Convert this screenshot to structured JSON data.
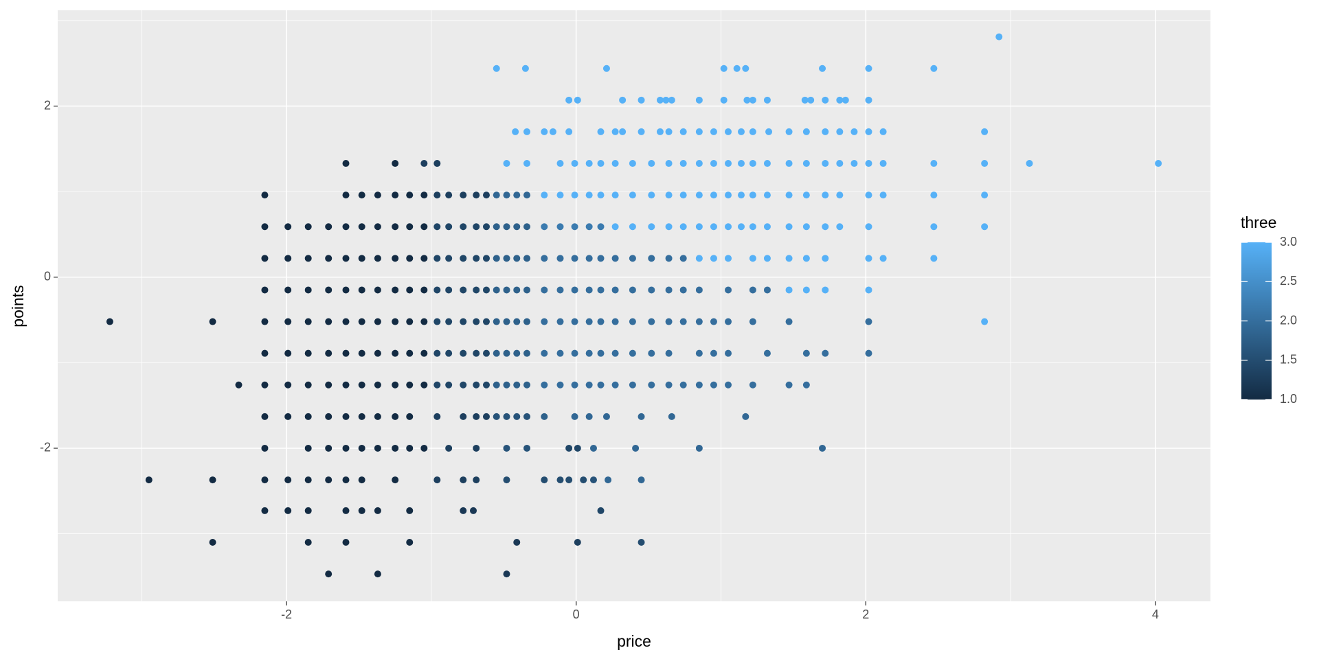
{
  "chart_data": {
    "type": "scatter",
    "x_label": "price",
    "y_label": "points",
    "color_label": "three",
    "xlim": [
      -3.58,
      4.38
    ],
    "ylim": [
      -3.79,
      3.12
    ],
    "xticks": [
      -2,
      0,
      2,
      4
    ],
    "yticks": [
      -2,
      0,
      2
    ],
    "minor_xticks": [
      -3,
      -1,
      1,
      3
    ],
    "minor_yticks": [
      -3,
      -1,
      1,
      3
    ],
    "grid": true,
    "color_low": "#132B43",
    "color_high": "#56B1F7",
    "color_lim": [
      1,
      3
    ],
    "color_ticks": [
      {
        "value": 1,
        "label": "1.0"
      },
      {
        "value": 1.5,
        "label": "1.5"
      },
      {
        "value": 2,
        "label": "2.0"
      },
      {
        "value": 2.5,
        "label": "2.5"
      },
      {
        "value": 3,
        "label": "3.0"
      }
    ],
    "x": [
      2.92,
      -0.55,
      -0.35,
      0.21,
      1.02,
      1.11,
      1.17,
      1.7,
      2.02,
      2.47,
      -0.05,
      0.01,
      0.32,
      0.45,
      0.58,
      0.62,
      0.66,
      0.85,
      1.02,
      1.18,
      1.22,
      1.32,
      1.58,
      1.62,
      1.72,
      1.82,
      1.86,
      2.02,
      -0.42,
      -0.34,
      -0.22,
      -0.16,
      -0.05,
      0.17,
      0.27,
      0.32,
      0.45,
      0.58,
      0.64,
      0.74,
      0.85,
      0.95,
      1.05,
      1.14,
      1.22,
      1.33,
      1.47,
      1.59,
      1.72,
      1.82,
      1.92,
      2.02,
      2.12,
      2.82,
      -1.59,
      -1.25,
      -1.05,
      -0.96,
      -0.48,
      -0.34,
      -0.11,
      -0.01,
      0.09,
      0.17,
      0.27,
      0.39,
      0.52,
      0.64,
      0.74,
      0.85,
      0.95,
      1.05,
      1.14,
      1.22,
      1.32,
      1.47,
      1.59,
      1.72,
      1.82,
      1.92,
      2.02,
      2.12,
      2.47,
      2.82,
      3.13,
      4.02,
      -2.15,
      -1.59,
      -1.48,
      -1.37,
      -1.25,
      -1.15,
      -1.05,
      -0.96,
      -0.88,
      -0.78,
      -0.69,
      -0.62,
      -0.55,
      -0.48,
      -0.41,
      -0.34,
      -0.22,
      -0.11,
      -0.01,
      0.09,
      0.17,
      0.27,
      0.39,
      0.52,
      0.64,
      0.74,
      0.85,
      0.95,
      1.05,
      1.14,
      1.22,
      1.32,
      1.47,
      1.59,
      1.72,
      1.82,
      2.02,
      2.12,
      2.47,
      2.82,
      -2.15,
      -1.99,
      -1.85,
      -1.71,
      -1.59,
      -1.48,
      -1.37,
      -1.25,
      -1.15,
      -1.05,
      -0.96,
      -0.88,
      -0.78,
      -0.69,
      -0.62,
      -0.55,
      -0.48,
      -0.41,
      -0.34,
      -0.22,
      -0.11,
      -0.01,
      0.09,
      0.17,
      0.27,
      0.39,
      0.52,
      0.64,
      0.74,
      0.85,
      0.95,
      1.05,
      1.14,
      1.22,
      1.32,
      1.47,
      1.59,
      1.72,
      1.82,
      2.02,
      2.47,
      2.82,
      -2.15,
      -1.99,
      -1.85,
      -1.71,
      -1.59,
      -1.48,
      -1.37,
      -1.25,
      -1.15,
      -1.05,
      -0.96,
      -0.88,
      -0.78,
      -0.69,
      -0.62,
      -0.55,
      -0.48,
      -0.41,
      -0.34,
      -0.22,
      -0.11,
      -0.01,
      0.09,
      0.17,
      0.27,
      0.39,
      0.52,
      0.64,
      0.74,
      0.85,
      0.95,
      1.05,
      1.22,
      1.32,
      1.47,
      1.59,
      1.72,
      2.02,
      2.12,
      2.47,
      -2.15,
      -1.99,
      -1.85,
      -1.71,
      -1.59,
      -1.48,
      -1.37,
      -1.25,
      -1.15,
      -1.05,
      -0.96,
      -0.88,
      -0.78,
      -0.69,
      -0.62,
      -0.55,
      -0.48,
      -0.41,
      -0.34,
      -0.22,
      -0.11,
      -0.01,
      0.09,
      0.17,
      0.27,
      0.39,
      0.52,
      0.64,
      0.74,
      0.85,
      1.05,
      1.22,
      1.32,
      1.47,
      1.59,
      1.72,
      2.02,
      -3.22,
      -2.51,
      -2.15,
      -1.99,
      -1.85,
      -1.71,
      -1.59,
      -1.48,
      -1.37,
      -1.25,
      -1.15,
      -1.05,
      -0.96,
      -0.88,
      -0.78,
      -0.69,
      -0.62,
      -0.55,
      -0.48,
      -0.41,
      -0.34,
      -0.22,
      -0.11,
      -0.01,
      0.09,
      0.17,
      0.27,
      0.39,
      0.52,
      0.64,
      0.74,
      0.85,
      0.95,
      1.05,
      1.22,
      1.47,
      2.02,
      2.82,
      -2.15,
      -1.99,
      -1.85,
      -1.71,
      -1.59,
      -1.48,
      -1.37,
      -1.25,
      -1.15,
      -1.05,
      -0.96,
      -0.88,
      -0.78,
      -0.69,
      -0.62,
      -0.55,
      -0.48,
      -0.41,
      -0.34,
      -0.22,
      -0.11,
      -0.01,
      0.09,
      0.17,
      0.27,
      0.39,
      0.52,
      0.64,
      0.85,
      0.95,
      1.05,
      1.32,
      1.59,
      1.72,
      2.02,
      -2.33,
      -2.15,
      -1.99,
      -1.85,
      -1.71,
      -1.59,
      -1.48,
      -1.37,
      -1.25,
      -1.15,
      -1.05,
      -0.96,
      -0.88,
      -0.78,
      -0.69,
      -0.62,
      -0.55,
      -0.48,
      -0.41,
      -0.34,
      -0.22,
      -0.11,
      -0.01,
      0.09,
      0.17,
      0.27,
      0.39,
      0.52,
      0.64,
      0.74,
      0.85,
      0.95,
      1.05,
      1.22,
      1.47,
      1.59,
      -2.15,
      -1.99,
      -1.85,
      -1.71,
      -1.59,
      -1.48,
      -1.37,
      -1.25,
      -1.15,
      -0.96,
      -0.78,
      -0.69,
      -0.62,
      -0.55,
      -0.48,
      -0.41,
      -0.34,
      -0.22,
      -0.01,
      0.09,
      0.21,
      0.45,
      0.66,
      1.17,
      -2.15,
      -1.85,
      -1.71,
      -1.59,
      -1.48,
      -1.37,
      -1.25,
      -1.15,
      -1.05,
      -0.88,
      -0.69,
      -0.48,
      -0.34,
      -0.05,
      0.01,
      0.12,
      0.41,
      0.85,
      1.7,
      -2.95,
      -2.51,
      -2.15,
      -1.99,
      -1.85,
      -1.71,
      -1.59,
      -1.48,
      -1.25,
      -0.96,
      -0.78,
      -0.69,
      -0.48,
      -0.22,
      -0.11,
      -0.05,
      0.05,
      0.12,
      0.22,
      0.45,
      -2.15,
      -1.99,
      -1.85,
      -1.59,
      -1.48,
      -1.37,
      -1.15,
      -0.78,
      -0.71,
      0.17,
      -2.51,
      -1.85,
      -1.59,
      -1.15,
      -0.41,
      0.01,
      0.45,
      -1.71,
      -1.37,
      -0.48
    ],
    "y": [
      2.81,
      2.44,
      2.44,
      2.44,
      2.44,
      2.44,
      2.44,
      2.44,
      2.44,
      2.44,
      2.07,
      2.07,
      2.07,
      2.07,
      2.07,
      2.07,
      2.07,
      2.07,
      2.07,
      2.07,
      2.07,
      2.07,
      2.07,
      2.07,
      2.07,
      2.07,
      2.07,
      2.07,
      1.7,
      1.7,
      1.7,
      1.7,
      1.7,
      1.7,
      1.7,
      1.7,
      1.7,
      1.7,
      1.7,
      1.7,
      1.7,
      1.7,
      1.7,
      1.7,
      1.7,
      1.7,
      1.7,
      1.7,
      1.7,
      1.7,
      1.7,
      1.7,
      1.7,
      1.7,
      1.33,
      1.33,
      1.33,
      1.33,
      1.33,
      1.33,
      1.33,
      1.33,
      1.33,
      1.33,
      1.33,
      1.33,
      1.33,
      1.33,
      1.33,
      1.33,
      1.33,
      1.33,
      1.33,
      1.33,
      1.33,
      1.33,
      1.33,
      1.33,
      1.33,
      1.33,
      1.33,
      1.33,
      1.33,
      1.33,
      1.33,
      1.33,
      0.96,
      0.96,
      0.96,
      0.96,
      0.96,
      0.96,
      0.96,
      0.96,
      0.96,
      0.96,
      0.96,
      0.96,
      0.96,
      0.96,
      0.96,
      0.96,
      0.96,
      0.96,
      0.96,
      0.96,
      0.96,
      0.96,
      0.96,
      0.96,
      0.96,
      0.96,
      0.96,
      0.96,
      0.96,
      0.96,
      0.96,
      0.96,
      0.96,
      0.96,
      0.96,
      0.96,
      0.96,
      0.96,
      0.96,
      0.96,
      0.59,
      0.59,
      0.59,
      0.59,
      0.59,
      0.59,
      0.59,
      0.59,
      0.59,
      0.59,
      0.59,
      0.59,
      0.59,
      0.59,
      0.59,
      0.59,
      0.59,
      0.59,
      0.59,
      0.59,
      0.59,
      0.59,
      0.59,
      0.59,
      0.59,
      0.59,
      0.59,
      0.59,
      0.59,
      0.59,
      0.59,
      0.59,
      0.59,
      0.59,
      0.59,
      0.59,
      0.59,
      0.59,
      0.59,
      0.59,
      0.59,
      0.59,
      0.22,
      0.22,
      0.22,
      0.22,
      0.22,
      0.22,
      0.22,
      0.22,
      0.22,
      0.22,
      0.22,
      0.22,
      0.22,
      0.22,
      0.22,
      0.22,
      0.22,
      0.22,
      0.22,
      0.22,
      0.22,
      0.22,
      0.22,
      0.22,
      0.22,
      0.22,
      0.22,
      0.22,
      0.22,
      0.22,
      0.22,
      0.22,
      0.22,
      0.22,
      0.22,
      0.22,
      0.22,
      0.22,
      0.22,
      0.22,
      -0.15,
      -0.15,
      -0.15,
      -0.15,
      -0.15,
      -0.15,
      -0.15,
      -0.15,
      -0.15,
      -0.15,
      -0.15,
      -0.15,
      -0.15,
      -0.15,
      -0.15,
      -0.15,
      -0.15,
      -0.15,
      -0.15,
      -0.15,
      -0.15,
      -0.15,
      -0.15,
      -0.15,
      -0.15,
      -0.15,
      -0.15,
      -0.15,
      -0.15,
      -0.15,
      -0.15,
      -0.15,
      -0.15,
      -0.15,
      -0.15,
      -0.15,
      -0.15,
      -0.52,
      -0.52,
      -0.52,
      -0.52,
      -0.52,
      -0.52,
      -0.52,
      -0.52,
      -0.52,
      -0.52,
      -0.52,
      -0.52,
      -0.52,
      -0.52,
      -0.52,
      -0.52,
      -0.52,
      -0.52,
      -0.52,
      -0.52,
      -0.52,
      -0.52,
      -0.52,
      -0.52,
      -0.52,
      -0.52,
      -0.52,
      -0.52,
      -0.52,
      -0.52,
      -0.52,
      -0.52,
      -0.52,
      -0.52,
      -0.52,
      -0.52,
      -0.52,
      -0.52,
      -0.89,
      -0.89,
      -0.89,
      -0.89,
      -0.89,
      -0.89,
      -0.89,
      -0.89,
      -0.89,
      -0.89,
      -0.89,
      -0.89,
      -0.89,
      -0.89,
      -0.89,
      -0.89,
      -0.89,
      -0.89,
      -0.89,
      -0.89,
      -0.89,
      -0.89,
      -0.89,
      -0.89,
      -0.89,
      -0.89,
      -0.89,
      -0.89,
      -0.89,
      -0.89,
      -0.89,
      -0.89,
      -0.89,
      -0.89,
      -0.89,
      -1.26,
      -1.26,
      -1.26,
      -1.26,
      -1.26,
      -1.26,
      -1.26,
      -1.26,
      -1.26,
      -1.26,
      -1.26,
      -1.26,
      -1.26,
      -1.26,
      -1.26,
      -1.26,
      -1.26,
      -1.26,
      -1.26,
      -1.26,
      -1.26,
      -1.26,
      -1.26,
      -1.26,
      -1.26,
      -1.26,
      -1.26,
      -1.26,
      -1.26,
      -1.26,
      -1.26,
      -1.26,
      -1.26,
      -1.26,
      -1.26,
      -1.26,
      -1.63,
      -1.63,
      -1.63,
      -1.63,
      -1.63,
      -1.63,
      -1.63,
      -1.63,
      -1.63,
      -1.63,
      -1.63,
      -1.63,
      -1.63,
      -1.63,
      -1.63,
      -1.63,
      -1.63,
      -1.63,
      -1.63,
      -1.63,
      -1.63,
      -1.63,
      -1.63,
      -1.63,
      -2.0,
      -2.0,
      -2.0,
      -2.0,
      -2.0,
      -2.0,
      -2.0,
      -2.0,
      -2.0,
      -2.0,
      -2.0,
      -2.0,
      -2.0,
      -2.0,
      -2.0,
      -2.0,
      -2.0,
      -2.0,
      -2.0,
      -2.37,
      -2.37,
      -2.37,
      -2.37,
      -2.37,
      -2.37,
      -2.37,
      -2.37,
      -2.37,
      -2.37,
      -2.37,
      -2.37,
      -2.37,
      -2.37,
      -2.37,
      -2.37,
      -2.37,
      -2.37,
      -2.37,
      -2.37,
      -2.73,
      -2.73,
      -2.73,
      -2.73,
      -2.73,
      -2.73,
      -2.73,
      -2.73,
      -2.73,
      -2.73,
      -3.1,
      -3.1,
      -3.1,
      -3.1,
      -3.1,
      -3.1,
      -3.1,
      -3.47,
      -3.47,
      -3.47
    ],
    "color_values": [
      3,
      3,
      3,
      3,
      3,
      3,
      3,
      3,
      3,
      3,
      3,
      3,
      3,
      3,
      3,
      3,
      3,
      3,
      3,
      3,
      3,
      3,
      3,
      3,
      3,
      3,
      3,
      3,
      3,
      3,
      3,
      3,
      3,
      3,
      3,
      3,
      3,
      3,
      3,
      3,
      3,
      3,
      3,
      3,
      3,
      3,
      3,
      3,
      3,
      3,
      3,
      3,
      3,
      3,
      1,
      1,
      1.3,
      1.3,
      3,
      3,
      3,
      3,
      3,
      3,
      3,
      3,
      3,
      3,
      3,
      3,
      3,
      3,
      3,
      3,
      3,
      3,
      3,
      3,
      3,
      3,
      3,
      3,
      3,
      3,
      3,
      3,
      1,
      1,
      1,
      1,
      1,
      1,
      1,
      1.3,
      1.3,
      1.3,
      1.3,
      1.3,
      1.9,
      1.9,
      1.9,
      1.9,
      3,
      3,
      3,
      3,
      3,
      3,
      3,
      3,
      3,
      3,
      3,
      3,
      3,
      3,
      3,
      3,
      3,
      3,
      3,
      3,
      3,
      3,
      3,
      3,
      1,
      1,
      1,
      1,
      1,
      1,
      1,
      1,
      1,
      1,
      1.4,
      1.4,
      1.4,
      1.4,
      1.4,
      1.8,
      1.8,
      1.8,
      1.8,
      2.2,
      2.2,
      2.2,
      2.2,
      2.2,
      3,
      3,
      3,
      3,
      3,
      3,
      3,
      3,
      3,
      3,
      3,
      3,
      3,
      3,
      3,
      3,
      3,
      3,
      1,
      1,
      1,
      1,
      1,
      1,
      1,
      1,
      1,
      1,
      1.4,
      1.4,
      1.4,
      1.4,
      1.4,
      1.8,
      1.8,
      1.8,
      1.8,
      2,
      2,
      2,
      2,
      2,
      2,
      2,
      2,
      2,
      2,
      3,
      3,
      3,
      3,
      3,
      3,
      3,
      3,
      3,
      3,
      3,
      1,
      1,
      1,
      1,
      1,
      1,
      1,
      1,
      1,
      1,
      1.4,
      1.4,
      1.4,
      1.4,
      1.4,
      1.8,
      1.8,
      1.8,
      1.8,
      2,
      2,
      2,
      2,
      2,
      2,
      2,
      2,
      2,
      2,
      2,
      2,
      2,
      2,
      3,
      3,
      3,
      3,
      1,
      1,
      1,
      1,
      1,
      1,
      1,
      1,
      1,
      1,
      1,
      1,
      1.4,
      1.4,
      1.4,
      1.4,
      1.4,
      1.8,
      1.8,
      1.8,
      1.8,
      2,
      2,
      2,
      2,
      2,
      2,
      2,
      2,
      2,
      2,
      2,
      2,
      2,
      2,
      2,
      2,
      3,
      1,
      1,
      1,
      1,
      1,
      1,
      1,
      1,
      1,
      1,
      1.4,
      1.4,
      1.4,
      1.4,
      1.4,
      1.8,
      1.8,
      1.8,
      1.8,
      2,
      2,
      2,
      2,
      2,
      2,
      2,
      2,
      2,
      2,
      2,
      2,
      2,
      2,
      2,
      2,
      1,
      1,
      1,
      1,
      1,
      1,
      1,
      1,
      1,
      1,
      1,
      1.4,
      1.4,
      1.4,
      1.4,
      1.4,
      1.8,
      1.8,
      1.8,
      1.8,
      2,
      2,
      2,
      2,
      2,
      2,
      2,
      2,
      2,
      2,
      2,
      2,
      2,
      2,
      2,
      2,
      1,
      1,
      1,
      1,
      1,
      1,
      1,
      1,
      1,
      1.3,
      1.3,
      1.3,
      1.3,
      1.6,
      1.6,
      1.6,
      1.6,
      1.8,
      1.9,
      1.9,
      1.9,
      1.9,
      1.9,
      1.9,
      1,
      1,
      1,
      1,
      1,
      1,
      1,
      1,
      1,
      1.3,
      1.3,
      1.6,
      1.6,
      1.4,
      1.4,
      1.9,
      1.9,
      1.9,
      1.9,
      1,
      1,
      1,
      1,
      1,
      1,
      1,
      1,
      1,
      1.3,
      1.3,
      1.3,
      1.5,
      1.5,
      1.5,
      1.5,
      1.5,
      1.6,
      1.9,
      1.9,
      1,
      1,
      1,
      1,
      1,
      1,
      1,
      1.2,
      1.2,
      1.4,
      1,
      1,
      1,
      1,
      1.2,
      1.3,
      1.5,
      1,
      1,
      1.2
    ]
  }
}
